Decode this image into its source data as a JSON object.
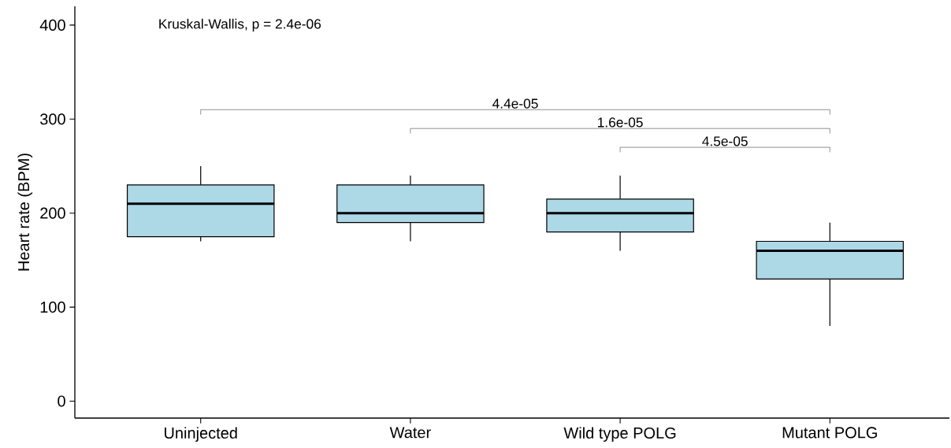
{
  "chart_data": {
    "type": "box",
    "ylabel": "Heart rate (BPM)",
    "categories": [
      "Uninjected",
      "Water",
      "Wild type POLG",
      "Mutant POLG"
    ],
    "boxes": [
      {
        "low": 170,
        "q1": 175,
        "median": 210,
        "q3": 230,
        "high": 250
      },
      {
        "low": 170,
        "q1": 190,
        "median": 200,
        "q3": 230,
        "high": 240
      },
      {
        "low": 160,
        "q1": 180,
        "median": 200,
        "q3": 215,
        "high": 240
      },
      {
        "low": 80,
        "q1": 130,
        "median": 160,
        "q3": 170,
        "high": 190
      }
    ],
    "color": "#add8e6",
    "ylim": [
      -18,
      420
    ],
    "yticks": [
      0,
      100,
      200,
      300,
      400
    ],
    "annotations": [
      "Kruskal-Wallis, p = 2.4e-06",
      "4.4e-05",
      "1.6e-05",
      "4.5e-05"
    ]
  }
}
